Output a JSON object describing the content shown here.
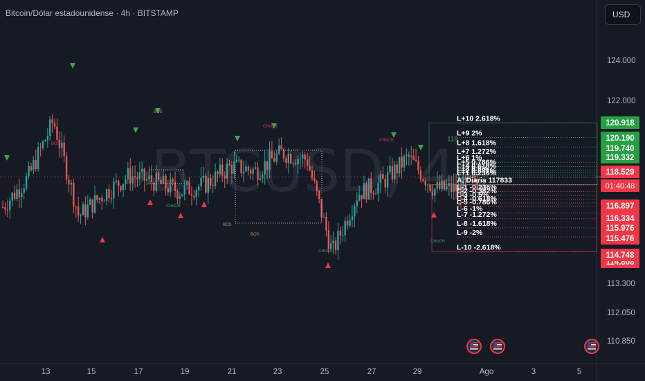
{
  "header": {
    "title": "Bitcoin/Dólar estadounidense · 4h · BITSTAMP",
    "currency_button": "USD",
    "watermark": "BTCUSD, 4h"
  },
  "colors": {
    "background": "#161a25",
    "up": "#26a69a",
    "down": "#ef5350",
    "fib_up": "#3fa34d",
    "fib_down": "#e94858",
    "axis_text": "#b2b5be"
  },
  "price_axis": {
    "ticks": [
      "124.000",
      "122.000",
      "113.300",
      "112.050",
      "110.850"
    ],
    "badges": [
      {
        "text": "120.918",
        "color": "#26a043"
      },
      {
        "text": "120.190",
        "color": "#26a043"
      },
      {
        "text": "119.740",
        "color": "#26a043"
      },
      {
        "text": "119.332",
        "color": "#26a043"
      },
      {
        "text": "118.529",
        "color": "#f23645"
      },
      {
        "text": "01:40:48",
        "color": "#f23645"
      },
      {
        "text": "116.897",
        "color": "#f23645"
      },
      {
        "text": "116.334",
        "color": "#f23645"
      },
      {
        "text": "115.976",
        "color": "#f23645"
      },
      {
        "text": "115.476",
        "color": "#f23645"
      },
      {
        "text": "114.748",
        "color": "#f23645"
      },
      {
        "text": "114.808",
        "color": "#f23645"
      }
    ]
  },
  "time_axis": {
    "ticks": [
      "13",
      "15",
      "17",
      "19",
      "21",
      "23",
      "25",
      "27",
      "29",
      "Ago",
      "3",
      "5"
    ]
  },
  "fib_labels": [
    {
      "text": "L+10 2.618%",
      "color": "#ffffff",
      "price": 121.12
    },
    {
      "text": "L+9 2%",
      "color": "#ffffff",
      "price": 120.48
    },
    {
      "text": "L+8 1.618%",
      "color": "#ffffff",
      "price": 120.06
    },
    {
      "text": "L+7 1.272%",
      "color": "#ffffff",
      "price": 119.67
    },
    {
      "text": "L+6 1%",
      "color": "#ffffff",
      "price": 119.39
    },
    {
      "text": "L+5 0.786%",
      "color": "#ffffff",
      "price": 119.2
    },
    {
      "text": "L+4 0.618%",
      "color": "#ffffff",
      "price": 119.03
    },
    {
      "text": "L+3 0.5%",
      "color": "#ffffff",
      "price": 118.92
    },
    {
      "text": "L+2 0.382%",
      "color": "#ffffff",
      "price": 118.82
    },
    {
      "text": "L+1 0.236%",
      "color": "#ffffff",
      "price": 118.72
    },
    {
      "text": "A. Diaria 117833",
      "color": "#ffffff",
      "price": 118.4
    },
    {
      "text": "L-1 -0.236%",
      "color": "#ffffff",
      "price": 118.1
    },
    {
      "text": "L-2 -0.382%",
      "color": "#ffffff",
      "price": 117.93
    },
    {
      "text": "L-3 -0.5%",
      "color": "#ffffff",
      "price": 117.76
    },
    {
      "text": "L-4 -0.618%",
      "color": "#ffffff",
      "price": 117.6
    },
    {
      "text": "L-5 -0.786%",
      "color": "#ffffff",
      "price": 117.44
    },
    {
      "text": "L-6 -1%",
      "color": "#ffffff",
      "price": 117.16
    },
    {
      "text": "L-7 -1.272%",
      "color": "#ffffff",
      "price": 116.9
    },
    {
      "text": "L-8 -1.618%",
      "color": "#ffffff",
      "price": 116.5
    },
    {
      "text": "L-9 -2%",
      "color": "#ffffff",
      "price": 116.1
    },
    {
      "text": "L-10 -2.618%",
      "color": "#ffffff",
      "price": 115.45
    }
  ],
  "annotations": {
    "bos": "BOS",
    "choch": "CHoCH",
    "side_value": "119"
  },
  "chart_data": {
    "type": "candlestick",
    "symbol": "BTCUSD",
    "interval": "4h",
    "exchange": "BITSTAMP",
    "ylim": [
      110.3,
      124.8
    ],
    "x": [
      "12",
      "13",
      "14",
      "15",
      "16",
      "17",
      "18",
      "19",
      "20",
      "21",
      "22",
      "23",
      "24",
      "25",
      "26",
      "27",
      "28",
      "29",
      "30",
      "31"
    ],
    "close": [
      117.2,
      118.5,
      121.0,
      116.8,
      117.8,
      118.6,
      118.3,
      117.9,
      118.2,
      119.0,
      118.8,
      119.6,
      119.3,
      115.2,
      117.8,
      118.3,
      119.4,
      118.0,
      118.0,
      118.529
    ],
    "current_price": 118.529,
    "levels": [
      120.918,
      120.19,
      119.74,
      119.332,
      118.529,
      116.897,
      116.334,
      115.976,
      115.476,
      114.748
    ]
  }
}
